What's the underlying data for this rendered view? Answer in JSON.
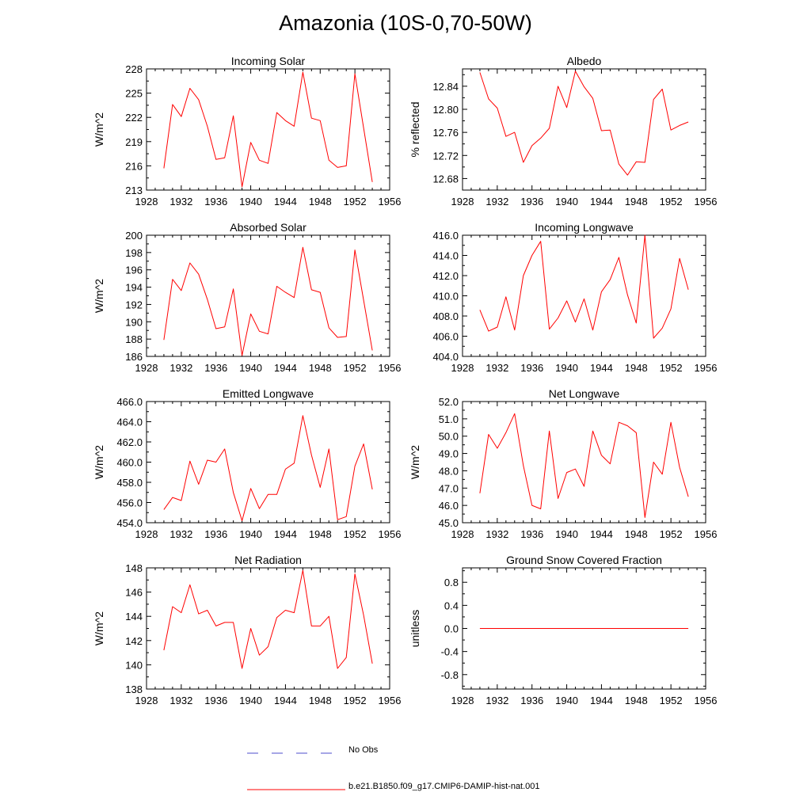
{
  "title": "Amazonia (10S-0,70-50W)",
  "colors": {
    "model": "#ff0000",
    "obs": "#4d4dcc",
    "axis": "#000000"
  },
  "legend": {
    "obs_label": "No Obs",
    "model_label": "b.e21.B1850.f09_g17.CMIP6-DAMIP-hist-nat.001"
  },
  "chart_data": [
    {
      "type": "line",
      "title": "Incoming Solar",
      "ylabel": "W/m^2",
      "xlim": [
        1928,
        1956
      ],
      "ylim": [
        213,
        228
      ],
      "xticks": [
        "1928",
        "1932",
        "1936",
        "1940",
        "1944",
        "1948",
        "1952",
        "1956"
      ],
      "yticks": [
        "213",
        "216",
        "219",
        "222",
        "225",
        "228"
      ],
      "series": [
        {
          "x": [
            1930,
            1931,
            1932,
            1933,
            1934,
            1935,
            1936,
            1937,
            1938,
            1939,
            1940,
            1941,
            1942,
            1943,
            1944,
            1945,
            1946,
            1947,
            1948,
            1949,
            1950,
            1951,
            1952,
            1953,
            1954
          ],
          "y": [
            215.7,
            223.6,
            222.1,
            225.6,
            224.2,
            220.9,
            216.8,
            217.0,
            222.2,
            213.4,
            218.9,
            216.7,
            216.3,
            222.6,
            221.6,
            220.9,
            227.6,
            221.9,
            221.6,
            216.7,
            215.8,
            216.0,
            227.4,
            220.7,
            214.0
          ]
        }
      ]
    },
    {
      "type": "line",
      "title": "Albedo",
      "ylabel": "% reflected",
      "xlim": [
        1928,
        1956
      ],
      "ylim": [
        12.66,
        12.87
      ],
      "xticks": [
        "1928",
        "1932",
        "1936",
        "1940",
        "1944",
        "1948",
        "1952",
        "1956"
      ],
      "yticks": [
        "12.68",
        "12.72",
        "12.76",
        "12.80",
        "12.84"
      ],
      "series": [
        {
          "x": [
            1930,
            1931,
            1932,
            1933,
            1934,
            1935,
            1936,
            1937,
            1938,
            1939,
            1940,
            1941,
            1942,
            1943,
            1944,
            1945,
            1946,
            1947,
            1948,
            1949,
            1950,
            1951,
            1952,
            1953,
            1954
          ],
          "y": [
            12.864,
            12.818,
            12.802,
            12.753,
            12.76,
            12.708,
            12.737,
            12.75,
            12.767,
            12.84,
            12.803,
            12.866,
            12.839,
            12.819,
            12.763,
            12.764,
            12.705,
            12.686,
            12.709,
            12.708,
            12.817,
            12.835,
            12.764,
            12.772,
            12.778
          ]
        }
      ]
    },
    {
      "type": "line",
      "title": "Absorbed Solar",
      "ylabel": "W/m^2",
      "xlim": [
        1928,
        1956
      ],
      "ylim": [
        186,
        200
      ],
      "xticks": [
        "1928",
        "1932",
        "1936",
        "1940",
        "1944",
        "1948",
        "1952",
        "1956"
      ],
      "yticks": [
        "186",
        "188",
        "190",
        "192",
        "194",
        "196",
        "198",
        "200"
      ],
      "series": [
        {
          "x": [
            1930,
            1931,
            1932,
            1933,
            1934,
            1935,
            1936,
            1937,
            1938,
            1939,
            1940,
            1941,
            1942,
            1943,
            1944,
            1945,
            1946,
            1947,
            1948,
            1949,
            1950,
            1951,
            1952,
            1953,
            1954
          ],
          "y": [
            187.9,
            194.9,
            193.6,
            196.8,
            195.5,
            192.6,
            189.2,
            189.4,
            193.8,
            186.1,
            190.9,
            188.9,
            188.6,
            194.1,
            193.4,
            192.8,
            198.6,
            193.7,
            193.4,
            189.3,
            188.2,
            188.3,
            198.3,
            192.5,
            186.7
          ]
        }
      ]
    },
    {
      "type": "line",
      "title": "Incoming Longwave",
      "ylabel": "",
      "xlim": [
        1928,
        1956
      ],
      "ylim": [
        404,
        416
      ],
      "xticks": [
        "1928",
        "1932",
        "1936",
        "1940",
        "1944",
        "1948",
        "1952",
        "1956"
      ],
      "yticks": [
        "404.0",
        "406.0",
        "408.0",
        "410.0",
        "412.0",
        "414.0",
        "416.0"
      ],
      "series": [
        {
          "x": [
            1930,
            1931,
            1932,
            1933,
            1934,
            1935,
            1936,
            1937,
            1938,
            1939,
            1940,
            1941,
            1942,
            1943,
            1944,
            1945,
            1946,
            1947,
            1948,
            1949,
            1950,
            1951,
            1952,
            1953,
            1954
          ],
          "y": [
            408.6,
            406.5,
            406.9,
            409.9,
            406.6,
            412.0,
            414.0,
            415.4,
            406.7,
            407.8,
            409.5,
            407.4,
            409.7,
            406.6,
            410.4,
            411.6,
            413.8,
            410.1,
            407.3,
            416.0,
            405.8,
            406.8,
            408.7,
            413.7,
            410.6
          ]
        }
      ]
    },
    {
      "type": "line",
      "title": "Emitted Longwave",
      "ylabel": "W/m^2",
      "xlim": [
        1928,
        1956
      ],
      "ylim": [
        454,
        466
      ],
      "xticks": [
        "1928",
        "1932",
        "1936",
        "1940",
        "1944",
        "1948",
        "1952",
        "1956"
      ],
      "yticks": [
        "454.0",
        "456.0",
        "458.0",
        "460.0",
        "462.0",
        "464.0",
        "466.0"
      ],
      "series": [
        {
          "x": [
            1930,
            1931,
            1932,
            1933,
            1934,
            1935,
            1936,
            1937,
            1938,
            1939,
            1940,
            1941,
            1942,
            1943,
            1944,
            1945,
            1946,
            1947,
            1948,
            1949,
            1950,
            1951,
            1952,
            1953,
            1954
          ],
          "y": [
            455.3,
            456.5,
            456.2,
            460.1,
            457.8,
            460.2,
            460.0,
            461.3,
            457.0,
            454.2,
            457.4,
            455.4,
            456.8,
            456.8,
            459.3,
            459.9,
            464.6,
            460.7,
            457.5,
            461.3,
            454.3,
            454.6,
            459.6,
            461.8,
            457.3
          ]
        }
      ]
    },
    {
      "type": "line",
      "title": "Net Longwave",
      "ylabel": "W/m^2",
      "xlim": [
        1928,
        1956
      ],
      "ylim": [
        45,
        52
      ],
      "xticks": [
        "1928",
        "1932",
        "1936",
        "1940",
        "1944",
        "1948",
        "1952",
        "1956"
      ],
      "yticks": [
        "45.0",
        "46.0",
        "47.0",
        "48.0",
        "49.0",
        "50.0",
        "51.0",
        "52.0"
      ],
      "series": [
        {
          "x": [
            1930,
            1931,
            1932,
            1933,
            1934,
            1935,
            1936,
            1937,
            1938,
            1939,
            1940,
            1941,
            1942,
            1943,
            1944,
            1945,
            1946,
            1947,
            1948,
            1949,
            1950,
            1951,
            1952,
            1953,
            1954
          ],
          "y": [
            46.7,
            50.1,
            49.3,
            50.2,
            51.3,
            48.3,
            46.0,
            45.8,
            50.3,
            46.4,
            47.9,
            48.1,
            47.1,
            50.3,
            48.9,
            48.4,
            50.8,
            50.6,
            50.2,
            45.3,
            48.5,
            47.8,
            50.8,
            48.2,
            46.5
          ]
        }
      ]
    },
    {
      "type": "line",
      "title": "Net Radiation",
      "ylabel": "W/m^2",
      "xlim": [
        1928,
        1956
      ],
      "ylim": [
        138,
        148
      ],
      "xticks": [
        "1928",
        "1932",
        "1936",
        "1940",
        "1944",
        "1948",
        "1952",
        "1956"
      ],
      "yticks": [
        "138",
        "140",
        "142",
        "144",
        "146",
        "148"
      ],
      "series": [
        {
          "x": [
            1930,
            1931,
            1932,
            1933,
            1934,
            1935,
            1936,
            1937,
            1938,
            1939,
            1940,
            1941,
            1942,
            1943,
            1944,
            1945,
            1946,
            1947,
            1948,
            1949,
            1950,
            1951,
            1952,
            1953,
            1954
          ],
          "y": [
            141.2,
            144.8,
            144.3,
            146.6,
            144.2,
            144.5,
            143.2,
            143.5,
            143.5,
            139.7,
            143.0,
            140.8,
            141.5,
            143.9,
            144.5,
            144.3,
            147.8,
            143.2,
            143.2,
            144.0,
            139.7,
            140.6,
            147.5,
            144.1,
            140.1
          ]
        }
      ]
    },
    {
      "type": "line",
      "title": "Ground Snow Covered Fraction",
      "ylabel": "unitless",
      "xlim": [
        1928,
        1956
      ],
      "ylim": [
        -1.05,
        1.05
      ],
      "xticks": [
        "1928",
        "1932",
        "1936",
        "1940",
        "1944",
        "1948",
        "1952",
        "1956"
      ],
      "yticks": [
        "-0.8",
        "-0.4",
        "0.0",
        "0.4",
        "0.8"
      ],
      "series": [
        {
          "x": [
            1930,
            1931,
            1932,
            1933,
            1934,
            1935,
            1936,
            1937,
            1938,
            1939,
            1940,
            1941,
            1942,
            1943,
            1944,
            1945,
            1946,
            1947,
            1948,
            1949,
            1950,
            1951,
            1952,
            1953,
            1954
          ],
          "y": [
            0,
            0,
            0,
            0,
            0,
            0,
            0,
            0,
            0,
            0,
            0,
            0,
            0,
            0,
            0,
            0,
            0,
            0,
            0,
            0,
            0,
            0,
            0,
            0,
            0
          ]
        }
      ]
    }
  ]
}
